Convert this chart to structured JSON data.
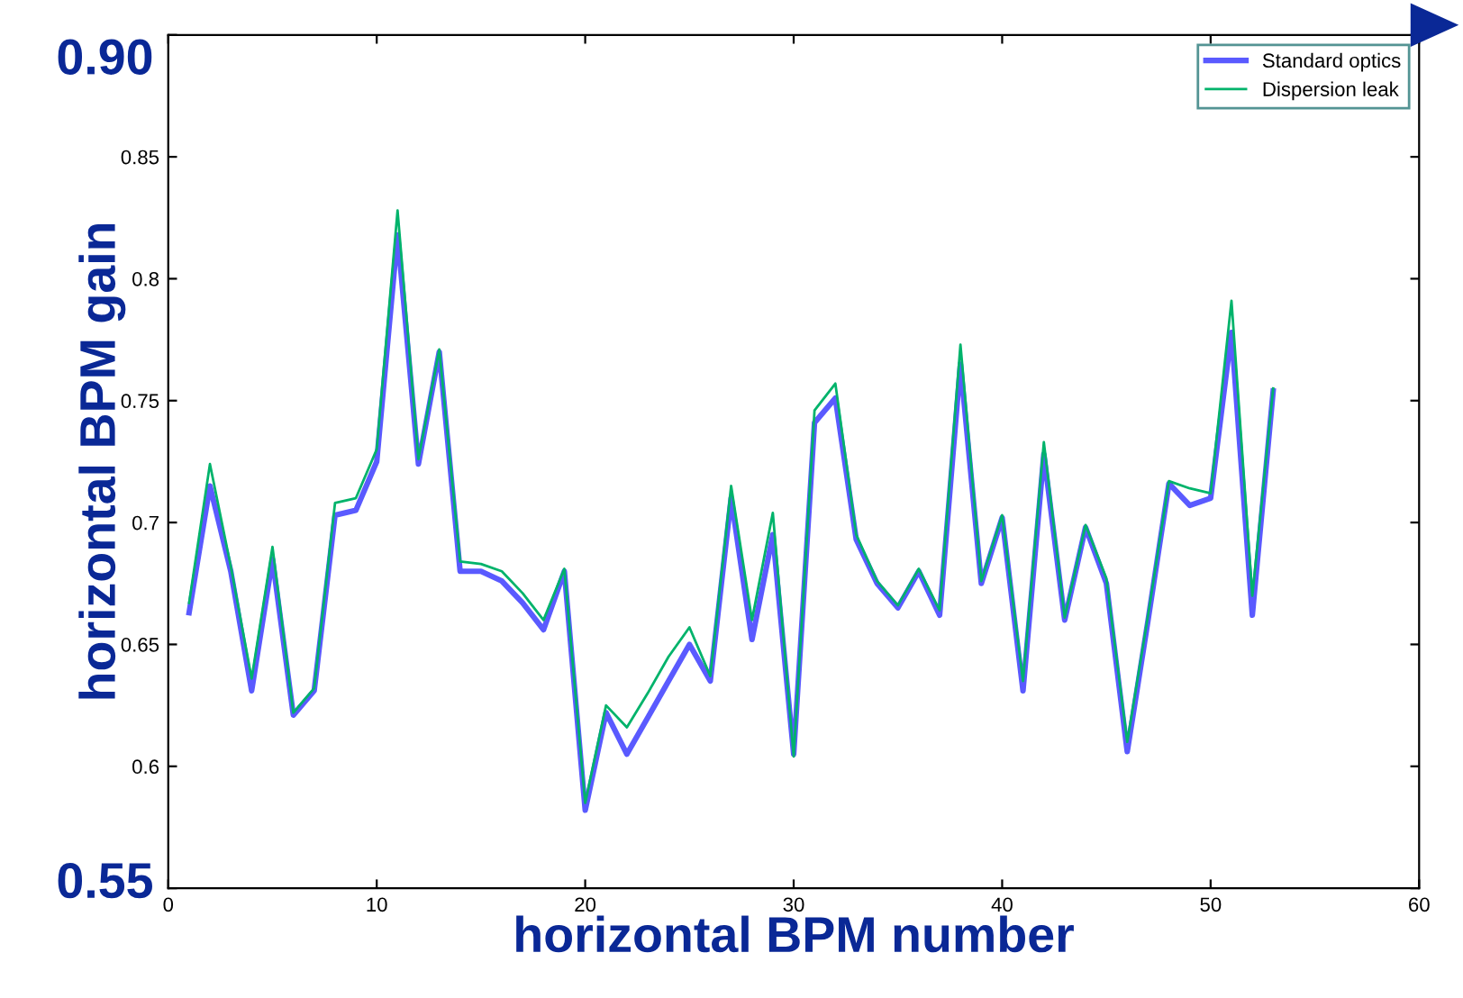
{
  "chart_data": {
    "type": "line",
    "xlabel": "horizontal BPM number",
    "ylabel": "horizontal BPM gain",
    "x": [
      1,
      2,
      3,
      4,
      5,
      6,
      7,
      8,
      9,
      10,
      11,
      12,
      13,
      14,
      15,
      16,
      17,
      18,
      19,
      20,
      21,
      22,
      23,
      24,
      25,
      26,
      27,
      28,
      29,
      30,
      31,
      32,
      33,
      34,
      35,
      36,
      37,
      38,
      39,
      40,
      41,
      42,
      43,
      44,
      45,
      46,
      47,
      48,
      49,
      50,
      51,
      52,
      53
    ],
    "series": [
      {
        "name": "Standard optics",
        "color": "#5a5aff",
        "values": [
          0.663,
          0.715,
          0.68,
          0.631,
          0.685,
          0.621,
          0.631,
          0.703,
          0.705,
          0.725,
          0.818,
          0.724,
          0.77,
          0.68,
          0.68,
          0.676,
          0.667,
          0.656,
          0.68,
          0.582,
          0.622,
          0.605,
          0.62,
          0.635,
          0.65,
          0.635,
          0.71,
          0.652,
          0.695,
          0.605,
          0.741,
          0.751,
          0.693,
          0.675,
          0.665,
          0.68,
          0.662,
          0.765,
          0.675,
          0.702,
          0.631,
          0.728,
          0.66,
          0.698,
          0.675,
          0.606,
          0.66,
          0.716,
          0.707,
          0.71,
          0.778,
          0.662,
          0.754
        ]
      },
      {
        "name": "Dispersion leak",
        "color": "#00b36b",
        "values": [
          0.667,
          0.724,
          0.682,
          0.636,
          0.69,
          0.622,
          0.632,
          0.708,
          0.71,
          0.73,
          0.828,
          0.726,
          0.771,
          0.684,
          0.683,
          0.68,
          0.671,
          0.66,
          0.681,
          0.585,
          0.625,
          0.616,
          0.63,
          0.645,
          0.657,
          0.637,
          0.715,
          0.66,
          0.704,
          0.604,
          0.746,
          0.757,
          0.695,
          0.676,
          0.666,
          0.681,
          0.664,
          0.773,
          0.676,
          0.703,
          0.635,
          0.733,
          0.661,
          0.699,
          0.677,
          0.61,
          0.662,
          0.717,
          0.714,
          0.712,
          0.791,
          0.67,
          0.755
        ]
      }
    ],
    "xlim": [
      0,
      60
    ],
    "xticks": [
      0,
      10,
      20,
      30,
      40,
      50,
      60
    ],
    "ylim": [
      0.55,
      0.9
    ],
    "yticks": [
      {
        "value": 0.55,
        "label": null
      },
      0.6,
      0.65,
      0.7,
      0.75,
      0.8,
      0.85,
      {
        "value": 0.9,
        "label": null
      }
    ],
    "annotations": [
      "0.90",
      "0.55"
    ],
    "legend": "top right",
    "grid": false,
    "marker": "none",
    "line_style": "solid"
  }
}
